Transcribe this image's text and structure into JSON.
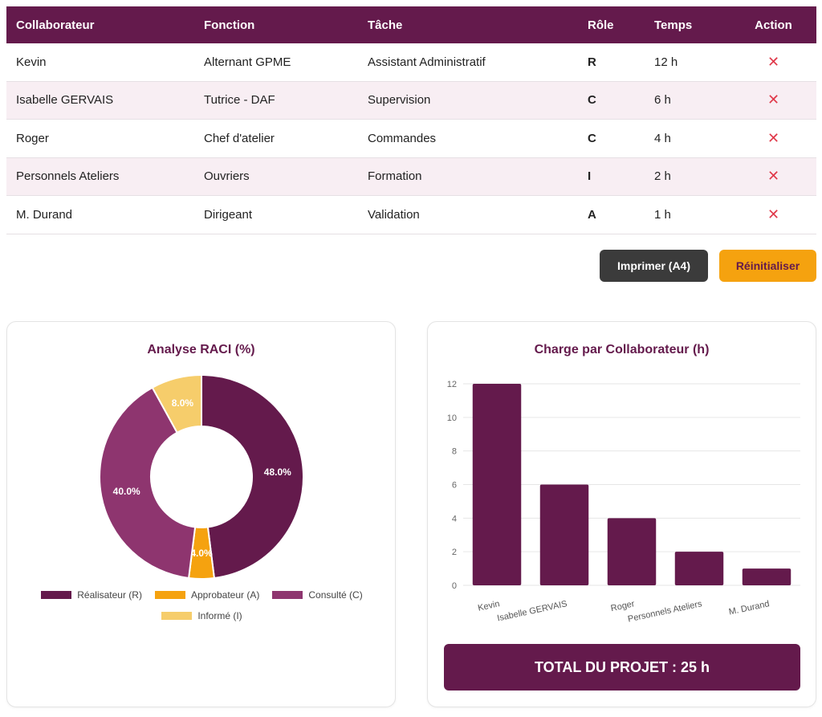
{
  "table": {
    "headers": [
      "Collaborateur",
      "Fonction",
      "Tâche",
      "Rôle",
      "Temps",
      "Action"
    ],
    "rows": [
      {
        "name": "Kevin",
        "function": "Alternant GPME",
        "task": "Assistant Administratif",
        "role": "R",
        "time": "12 h"
      },
      {
        "name": "Isabelle GERVAIS",
        "function": "Tutrice - DAF",
        "task": "Supervision",
        "role": "C",
        "time": "6 h"
      },
      {
        "name": "Roger",
        "function": "Chef d'atelier",
        "task": "Commandes",
        "role": "C",
        "time": "4 h"
      },
      {
        "name": "Personnels Ateliers",
        "function": "Ouvriers",
        "task": "Formation",
        "role": "I",
        "time": "2 h"
      },
      {
        "name": "M. Durand",
        "function": "Dirigeant",
        "task": "Validation",
        "role": "A",
        "time": "1 h"
      }
    ],
    "delete_glyph": "✕"
  },
  "buttons": {
    "print_label": "Imprimer (A4)",
    "reset_label": "Réinitialiser"
  },
  "colors": {
    "primary": "#641a4c",
    "consulte": "#8e356f",
    "accent": "#f5a20f",
    "informe": "#f6cd6b",
    "delete": "#e0394a"
  },
  "total_label": "TOTAL DU PROJET : 25 h",
  "chart_data": [
    {
      "type": "pie",
      "title": "Analyse RACI (%)",
      "labels": [
        "Réalisateur (R)",
        "Approbateur (A)",
        "Consulté (C)",
        "Informé (I)"
      ],
      "values": [
        48.0,
        4.0,
        40.0,
        8.0
      ],
      "value_labels": [
        "48.0%",
        "4.0%",
        "40.0%",
        "8.0%"
      ],
      "colors": [
        "#641a4c",
        "#f5a20f",
        "#8e356f",
        "#f6cd6b"
      ],
      "legend": "bottom"
    },
    {
      "type": "bar",
      "title": "Charge par Collaborateur (h)",
      "categories": [
        "Kevin",
        "Isabelle GERVAIS",
        "Roger",
        "Personnels Ateliers",
        "M. Durand"
      ],
      "values": [
        12,
        6,
        4,
        2,
        1
      ],
      "ylim": [
        0,
        12
      ],
      "yticks": [
        "0",
        "2",
        "4",
        "6",
        "8",
        "10",
        "12"
      ],
      "grid": true,
      "color": "#641a4c"
    }
  ]
}
